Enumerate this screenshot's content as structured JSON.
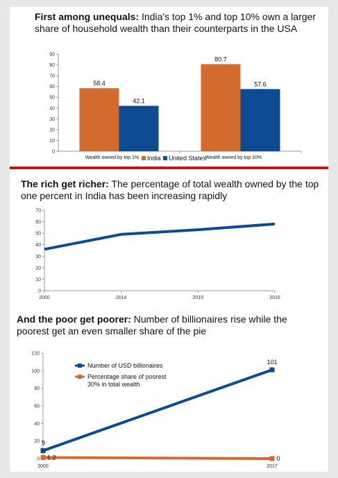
{
  "panels": [
    {
      "title_bold": "First among unequals:",
      "title_rest": "India's top 1% and top 10% own a larger share of household wealth than their counterparts in the USA"
    },
    {
      "title_bold": "The rich get richer:",
      "title_rest": "The percentage of total wealth owned by the top one percent in India has been increasing rapidly"
    },
    {
      "title_bold": "And the poor get poorer:",
      "title_rest": "Number of billionaires rise while the poorest get an even smaller share of the pie"
    }
  ],
  "chart_data": [
    {
      "type": "bar",
      "categories": [
        "Wealth owned by top 1%",
        "Wealth owned by top 10%"
      ],
      "series": [
        {
          "name": "India",
          "values": [
            58.4,
            80.7
          ],
          "color": "#d46a2e"
        },
        {
          "name": "United States",
          "values": [
            42.1,
            57.6
          ],
          "color": "#0d4a91"
        }
      ],
      "ylim": [
        0,
        90
      ],
      "yticks": [
        0,
        10,
        20,
        30,
        40,
        50,
        60,
        70,
        80,
        90
      ],
      "legend": "bottom",
      "grid": false
    },
    {
      "type": "line",
      "x": [
        "2000",
        "2014",
        "2015",
        "2016"
      ],
      "series": [
        {
          "values": [
            36,
            49,
            53,
            58
          ],
          "color": "#0d4a91"
        }
      ],
      "ylim": [
        0,
        70
      ],
      "yticks": [
        0,
        10,
        20,
        30,
        40,
        50,
        60,
        70
      ],
      "grid": false
    },
    {
      "type": "line",
      "x": [
        "2000",
        "2017"
      ],
      "series": [
        {
          "name": "Number of USD billionaires",
          "values": [
            9,
            101
          ],
          "color": "#0d4a91"
        },
        {
          "name": "Percentage share of poorest 30% in total wealth",
          "values": [
            1.2,
            0
          ],
          "color": "#d46a2e"
        }
      ],
      "data_labels": [
        [
          "9",
          "101"
        ],
        [
          "1.2",
          "0"
        ]
      ],
      "ylim": [
        0,
        120
      ],
      "yticks": [
        0,
        20,
        40,
        60,
        80,
        100,
        120
      ],
      "legend": "upper-left",
      "grid": false
    }
  ]
}
